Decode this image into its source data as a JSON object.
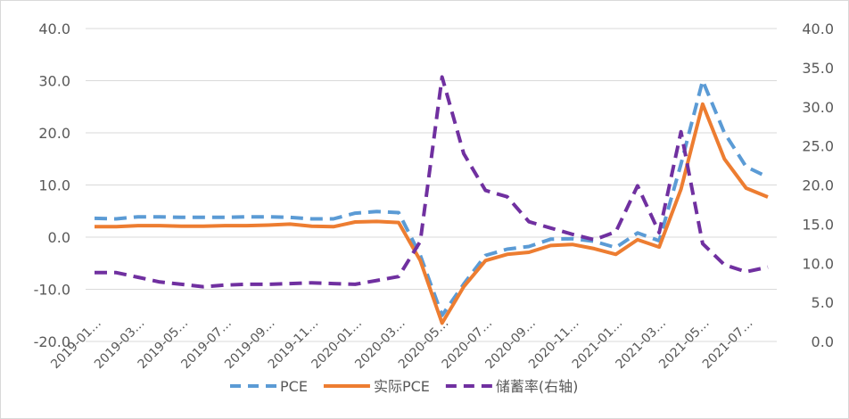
{
  "chart_data": {
    "type": "line",
    "left_axis": {
      "min": -20,
      "max": 40,
      "step": 10,
      "tick_labels": [
        "-20.0",
        "-10.0",
        "0.0",
        "10.0",
        "20.0",
        "30.0",
        "40.0"
      ]
    },
    "right_axis": {
      "min": 0,
      "max": 40,
      "step": 5,
      "tick_labels": [
        "0.0",
        "5.0",
        "10.0",
        "15.0",
        "20.0",
        "25.0",
        "30.0",
        "35.0",
        "40.0"
      ]
    },
    "x_tick_labels": [
      "2019-01…",
      "2019-03…",
      "2019-05…",
      "2019-07…",
      "2019-09…",
      "2019-11…",
      "2020-01…",
      "2020-03…",
      "2020-05…",
      "2020-07…",
      "2020-09…",
      "2020-11…",
      "2021-01…",
      "2021-03…",
      "2021-05…",
      "2021-07…"
    ],
    "grid": true,
    "legend_position": "bottom",
    "series": [
      {
        "name": "PCE",
        "axis": "left",
        "style": "dashed",
        "color": "#5B9BD5",
        "values": [
          3.6,
          3.5,
          3.9,
          3.9,
          3.8,
          3.8,
          3.8,
          3.9,
          3.9,
          3.8,
          3.5,
          3.5,
          4.6,
          4.9,
          4.7,
          -3.5,
          -15.0,
          -9.0,
          -3.5,
          -2.3,
          -1.8,
          -0.4,
          -0.3,
          -0.8,
          -2.0,
          0.8,
          -0.7,
          14.0,
          30.0,
          20.0,
          13.5,
          11.5
        ]
      },
      {
        "name": "实际PCE",
        "axis": "left",
        "style": "solid",
        "color": "#ED7D31",
        "values": [
          2.0,
          2.0,
          2.2,
          2.2,
          2.1,
          2.1,
          2.2,
          2.2,
          2.3,
          2.5,
          2.1,
          2.0,
          2.9,
          3.0,
          2.8,
          -4.5,
          -16.5,
          -9.5,
          -4.5,
          -3.3,
          -2.9,
          -1.6,
          -1.4,
          -2.2,
          -3.3,
          -0.5,
          -1.9,
          9.2,
          25.5,
          15.0,
          9.4,
          7.7
        ]
      },
      {
        "name": "储蓄率(右轴)",
        "axis": "right",
        "style": "dashed",
        "color": "#7030A0",
        "values": [
          8.8,
          8.8,
          8.2,
          7.6,
          7.3,
          7.0,
          7.2,
          7.3,
          7.3,
          7.4,
          7.5,
          7.4,
          7.3,
          7.8,
          8.3,
          12.8,
          33.8,
          24.0,
          19.3,
          18.5,
          15.3,
          14.5,
          13.7,
          13.0,
          14.0,
          19.9,
          13.9,
          26.8,
          12.5,
          9.8,
          8.9,
          9.5
        ]
      }
    ]
  }
}
